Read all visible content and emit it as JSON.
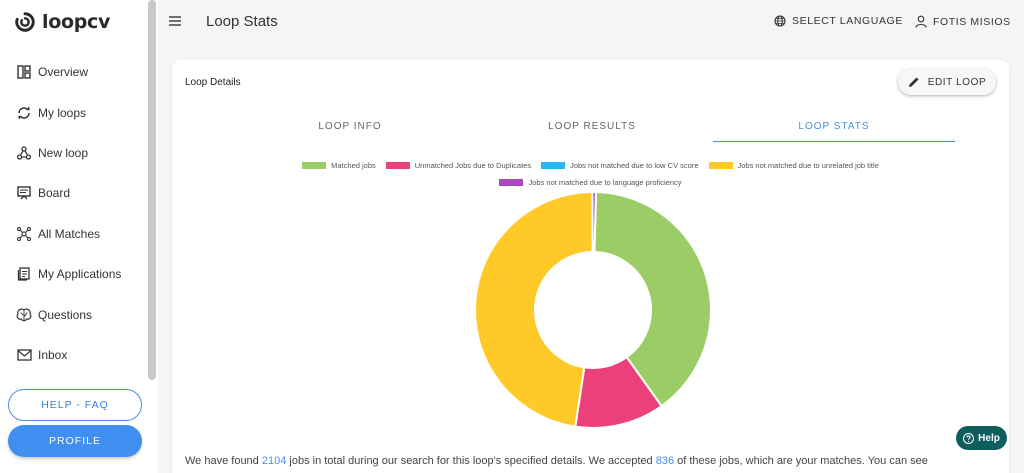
{
  "app": {
    "logo_text": "loopcv"
  },
  "sidebar": {
    "items": [
      {
        "label": "Overview",
        "icon": "dashboard-icon"
      },
      {
        "label": "My loops",
        "icon": "loop-icon"
      },
      {
        "label": "New loop",
        "icon": "share-nodes-icon"
      },
      {
        "label": "Board",
        "icon": "board-icon"
      },
      {
        "label": "All Matches",
        "icon": "network-icon"
      },
      {
        "label": "My Applications",
        "icon": "applications-icon"
      },
      {
        "label": "Questions",
        "icon": "brain-icon"
      },
      {
        "label": "Inbox",
        "icon": "mail-icon"
      }
    ],
    "help_faq_label": "HELP - FAQ",
    "profile_label": "PROFILE"
  },
  "header": {
    "title": "Loop Stats",
    "language_label": "SELECT LANGUAGE",
    "user_label": "FOTIS MISIOS"
  },
  "card": {
    "title": "Loop Details",
    "edit_label": "EDIT LOOP",
    "tabs": [
      {
        "label": "LOOP INFO",
        "active": false
      },
      {
        "label": "LOOP RESULTS",
        "active": false
      },
      {
        "label": "LOOP STATS",
        "active": true
      }
    ]
  },
  "summary": {
    "p1": "We have found ",
    "total": "2104",
    "p2": " jobs in total during our search for this loop's specified details. We accepted ",
    "accepted": "836",
    "p3": " of these jobs, which are your matches. You can see"
  },
  "help_fab": {
    "label": "Help"
  },
  "chart_data": {
    "type": "pie",
    "variant": "doughnut",
    "title": "",
    "series": [
      {
        "name": "Matched jobs",
        "value": 836,
        "color": "#9ccc65"
      },
      {
        "name": "Unmatched Jobs due to Duplicates",
        "value": 258,
        "color": "#ec407a"
      },
      {
        "name": "Jobs not matched due to low CV score",
        "value": 0,
        "color": "#29b6f6"
      },
      {
        "name": "Jobs not matched due to unrelated job title",
        "value": 1000,
        "color": "#ffca28"
      },
      {
        "name": "Jobs not matched due to language proficiency",
        "value": 10,
        "color": "#ab47bc"
      }
    ],
    "legend_position": "top"
  }
}
